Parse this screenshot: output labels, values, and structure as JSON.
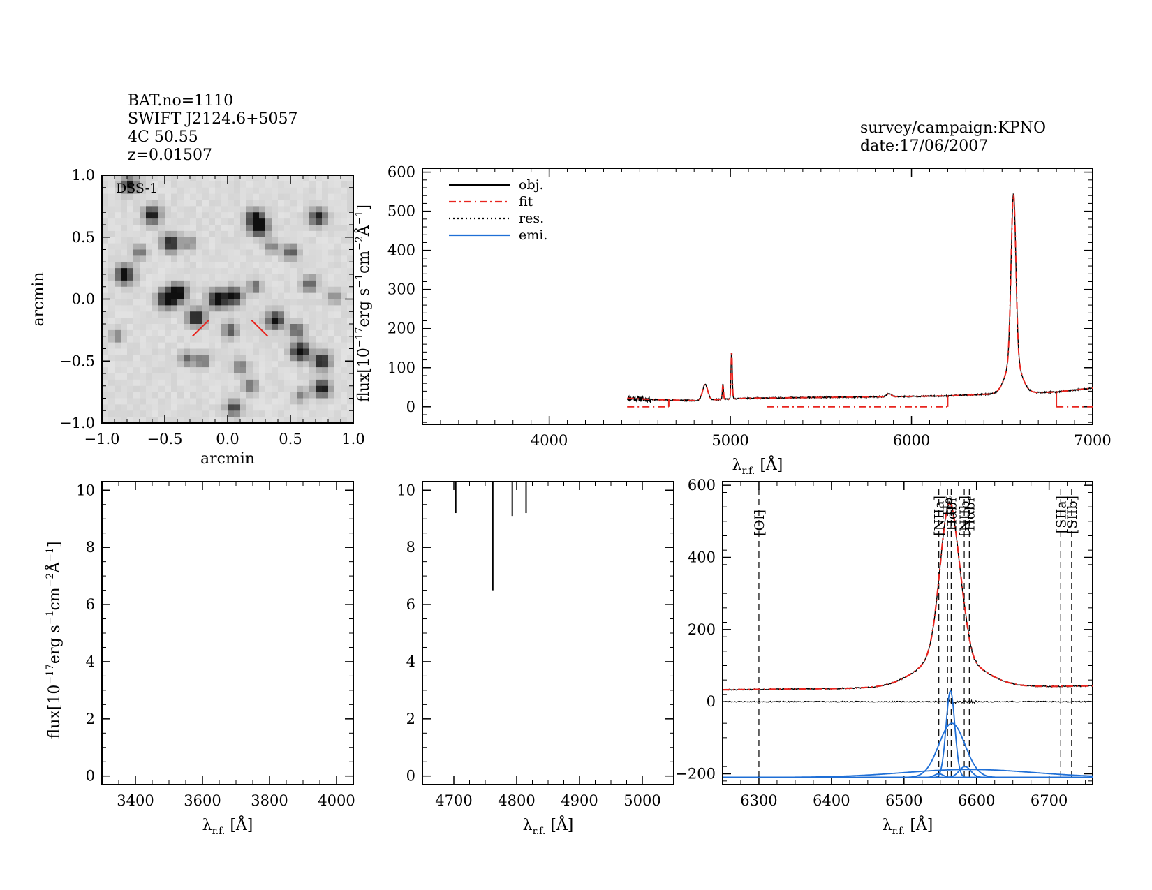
{
  "header": {
    "left_lines": [
      "BAT.no=1110",
      "SWIFT J2124.6+5057",
      "4C 50.55",
      "z=0.01507"
    ],
    "right_lines": [
      "survey/campaign:KPNO",
      "date:17/06/2007"
    ]
  },
  "colors": {
    "obj": "#000000",
    "fit": "#e8251f",
    "res": "#000000",
    "emi": "#1f6fd6",
    "marker": "#e8251f",
    "oi_label": "#e8251f"
  },
  "chart_data": [
    {
      "id": "dss_image",
      "type": "heatmap",
      "label": "DSS-1",
      "xlabel": "arcmin",
      "ylabel": "arcmin",
      "xlim": [
        -1.0,
        1.0
      ],
      "ylim": [
        -1.0,
        1.0
      ],
      "xticks": [
        "−1.0",
        "−0.5",
        "0.0",
        "0.5",
        "1.0"
      ],
      "yticks": [
        "−1.0",
        "−0.5",
        "0.0",
        "0.5",
        "1.0"
      ],
      "sources": [
        {
          "x": -0.82,
          "y": 0.2,
          "s": 1.0
        },
        {
          "x": -0.6,
          "y": 0.68,
          "s": 0.9
        },
        {
          "x": -0.78,
          "y": 0.92,
          "s": 0.8
        },
        {
          "x": -0.45,
          "y": 0.45,
          "s": 0.9
        },
        {
          "x": -0.4,
          "y": 0.05,
          "s": 1.0
        },
        {
          "x": -0.48,
          "y": 0.0,
          "s": 1.0
        },
        {
          "x": -0.25,
          "y": -0.15,
          "s": 0.9
        },
        {
          "x": -0.08,
          "y": 0.0,
          "s": 1.0
        },
        {
          "x": 0.05,
          "y": 0.02,
          "s": 0.9
        },
        {
          "x": 0.25,
          "y": 0.58,
          "s": 1.0
        },
        {
          "x": 0.22,
          "y": 0.66,
          "s": 0.8
        },
        {
          "x": 0.38,
          "y": -0.17,
          "s": 0.9
        },
        {
          "x": 0.58,
          "y": -0.42,
          "s": 1.0
        },
        {
          "x": 0.75,
          "y": -0.5,
          "s": 0.9
        },
        {
          "x": 0.75,
          "y": -0.72,
          "s": 0.9
        },
        {
          "x": 0.72,
          "y": 0.66,
          "s": 0.8
        },
        {
          "x": 0.65,
          "y": 0.12,
          "s": 0.6
        },
        {
          "x": 0.55,
          "y": -0.25,
          "s": 0.6
        },
        {
          "x": 0.5,
          "y": 0.38,
          "s": 0.6
        },
        {
          "x": 0.22,
          "y": 0.1,
          "s": 0.5
        },
        {
          "x": 0.02,
          "y": -0.25,
          "s": 0.6
        },
        {
          "x": -0.2,
          "y": -0.5,
          "s": 0.5
        },
        {
          "x": -0.32,
          "y": -0.48,
          "s": 0.5
        },
        {
          "x": 0.1,
          "y": -0.55,
          "s": 0.5
        },
        {
          "x": 0.18,
          "y": -0.7,
          "s": 0.5
        },
        {
          "x": 0.05,
          "y": -0.88,
          "s": 0.7
        },
        {
          "x": -0.7,
          "y": 0.38,
          "s": 0.5
        },
        {
          "x": -0.3,
          "y": 0.45,
          "s": 0.4
        },
        {
          "x": 0.35,
          "y": 0.42,
          "s": 0.4
        },
        {
          "x": 0.85,
          "y": 0.02,
          "s": 0.4
        },
        {
          "x": -0.88,
          "y": -0.3,
          "s": 0.4
        },
        {
          "x": 0.58,
          "y": -0.78,
          "s": 0.4
        }
      ],
      "markers": [
        {
          "x1": -0.28,
          "y1": -0.3,
          "x2": -0.15,
          "y2": -0.17
        },
        {
          "x1": 0.32,
          "y1": -0.3,
          "x2": 0.19,
          "y2": -0.17
        }
      ]
    },
    {
      "id": "full_spectrum",
      "type": "line",
      "xlabel": "λr.f. [Å]",
      "ylabel": "flux[10⁻¹⁷erg s⁻¹cm⁻²Å⁻¹]",
      "xlim": [
        3300,
        7000
      ],
      "ylim": [
        -45,
        610
      ],
      "xticks": [
        4000,
        5000,
        6000,
        7000
      ],
      "yticks": [
        0,
        100,
        200,
        300,
        400,
        500,
        600
      ],
      "legend": {
        "placement": "top-left",
        "entries": [
          "obj.",
          "fit",
          "res.",
          "emi."
        ]
      },
      "continuum_points": [
        [
          4430,
          22
        ],
        [
          4600,
          18
        ],
        [
          4800,
          16
        ],
        [
          5100,
          22
        ],
        [
          5500,
          24
        ],
        [
          5900,
          26
        ],
        [
          6200,
          28
        ],
        [
          6400,
          32
        ],
        [
          6800,
          38
        ],
        [
          7000,
          48
        ]
      ],
      "emission_lines": [
        {
          "center": 4861,
          "amp": 40,
          "sigma": 14
        },
        {
          "center": 4959,
          "amp": 40,
          "sigma": 3
        },
        {
          "center": 5007,
          "amp": 120,
          "sigma": 3.5
        },
        {
          "center": 5876,
          "amp": 8,
          "sigma": 12
        },
        {
          "center": 6563,
          "amp": 420,
          "sigma": 13
        },
        {
          "center": 6563,
          "amp": 90,
          "sigma": 40
        }
      ],
      "fit_mask_segments": [
        [
          4430,
          4660,
          0
        ],
        [
          5200,
          6200,
          0
        ],
        [
          6800,
          7000,
          0
        ]
      ]
    },
    {
      "id": "zoom_oii",
      "type": "line",
      "xlabel": "λr.f. [Å]",
      "ylabel": "flux[10⁻¹⁷erg s⁻¹cm⁻²Å⁻¹]",
      "xlim": [
        3300,
        4050
      ],
      "ylim": [
        -0.3,
        10.3
      ],
      "xticks": [
        3400,
        3600,
        3800,
        4000
      ],
      "yticks": [
        0,
        2,
        4,
        6,
        8,
        10
      ],
      "series": []
    },
    {
      "id": "zoom_hbeta",
      "type": "line",
      "xlabel": "λr.f. [Å]",
      "ylabel": "",
      "xlim": [
        4650,
        5050
      ],
      "ylim": [
        -0.3,
        10.3
      ],
      "xticks": [
        4700,
        4800,
        4900,
        5000
      ],
      "yticks": [
        0,
        2,
        4,
        6,
        8,
        10
      ],
      "spikes": [
        [
          4703,
          9.2
        ],
        [
          4762,
          6.5
        ],
        [
          4793,
          9.1
        ],
        [
          4815,
          9.2
        ]
      ]
    },
    {
      "id": "zoom_halpha",
      "type": "line",
      "xlabel": "λr.f. [Å]",
      "ylabel": "",
      "xlim": [
        6250,
        6760
      ],
      "ylim": [
        -230,
        610
      ],
      "xticks": [
        6300,
        6400,
        6500,
        6600,
        6700
      ],
      "yticks": [
        -200,
        0,
        200,
        400,
        600
      ],
      "line_markers": [
        {
          "wave": 6300,
          "label": "[OI]",
          "color": "red"
        },
        {
          "wave": 6548,
          "label": "[NIIa]"
        },
        {
          "wave": 6560,
          "label": "Hα"
        },
        {
          "wave": 6565,
          "label": "Hαbr"
        },
        {
          "wave": 6583,
          "label": "[NIIb]"
        },
        {
          "wave": 6590,
          "label": "Hαbr"
        },
        {
          "wave": 6716,
          "label": "[SIIa]"
        },
        {
          "wave": 6731,
          "label": "[SIIb]"
        }
      ],
      "continuum": [
        [
          6250,
          33
        ],
        [
          6400,
          36
        ],
        [
          6500,
          40
        ],
        [
          6700,
          42
        ],
        [
          6760,
          44
        ]
      ],
      "emi_offset": -210,
      "emi_components": [
        {
          "center": 6564,
          "amp": 240,
          "sigma": 6
        },
        {
          "center": 6566,
          "amp": 150,
          "sigma": 18
        },
        {
          "center": 6584,
          "amp": 30,
          "sigma": 8
        },
        {
          "center": 6548,
          "amp": 10,
          "sigma": 6
        },
        {
          "center": 6590,
          "amp": 22,
          "sigma": 90
        }
      ]
    }
  ]
}
